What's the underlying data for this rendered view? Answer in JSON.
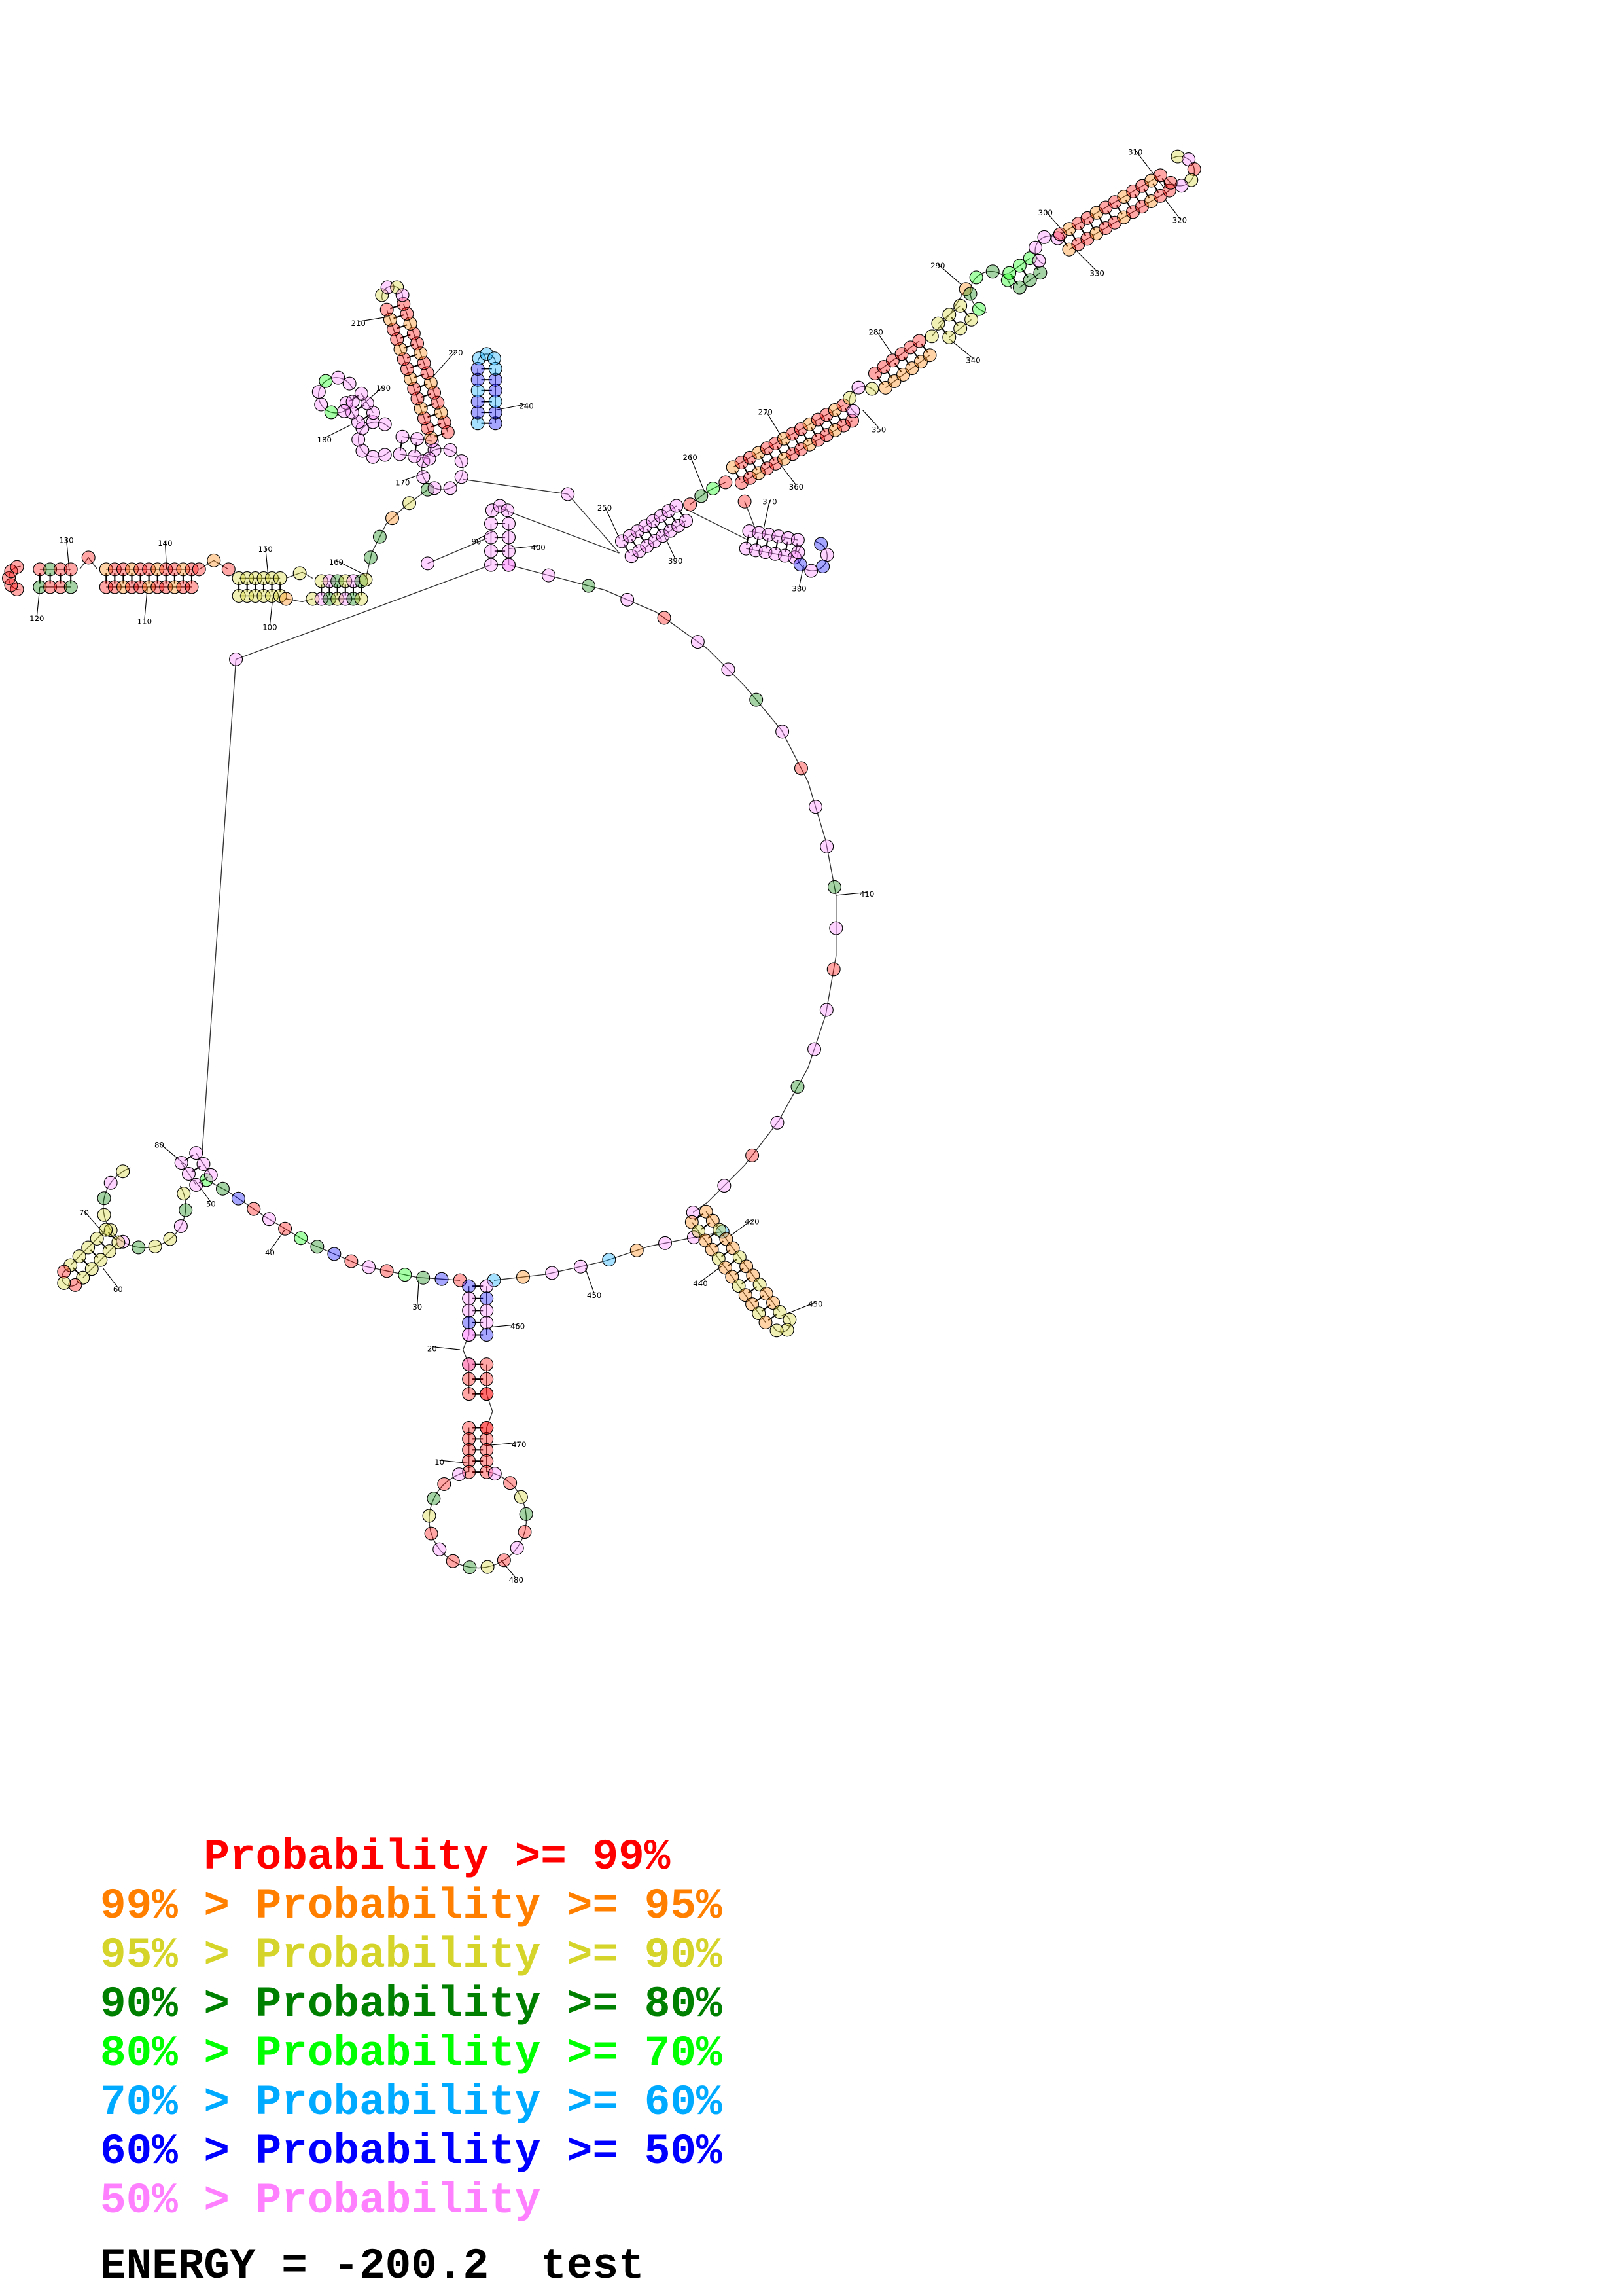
{
  "colors": {
    "p99": "#ff0000",
    "p95": "#ff8000",
    "p90": "#d4d42a",
    "p80": "#008000",
    "p70": "#00ff00",
    "p60": "#00aaff",
    "p50": "#0000ff",
    "below50": "#ff80ff"
  },
  "legend": [
    {
      "text": "    Probability >= 99%",
      "color": "#ff0000"
    },
    {
      "text": "99% > Probability >= 95%",
      "color": "#ff8000"
    },
    {
      "text": "95% > Probability >= 90%",
      "color": "#d4d42a"
    },
    {
      "text": "90% > Probability >= 80%",
      "color": "#008000"
    },
    {
      "text": "80% > Probability >= 70%",
      "color": "#00ff00"
    },
    {
      "text": "70% > Probability >= 60%",
      "color": "#00aaff"
    },
    {
      "text": "60% > Probability >= 50%",
      "color": "#0000ff"
    },
    {
      "text": "50% > Probability",
      "color": "#ff80ff"
    }
  ],
  "energy_line": "ENERGY = -200.2  test",
  "position_labels": [
    "10",
    "20",
    "30",
    "40",
    "50",
    "60",
    "70",
    "80",
    "90",
    "100",
    "110",
    "120",
    "130",
    "140",
    "150",
    "160",
    "170",
    "180",
    "190",
    "210",
    "220",
    "240",
    "250",
    "260",
    "270",
    "280",
    "290",
    "300",
    "310",
    "320",
    "330",
    "340",
    "350",
    "360",
    "370",
    "380",
    "390",
    "400",
    "410",
    "420",
    "430",
    "440",
    "450",
    "460",
    "470",
    "480"
  ]
}
